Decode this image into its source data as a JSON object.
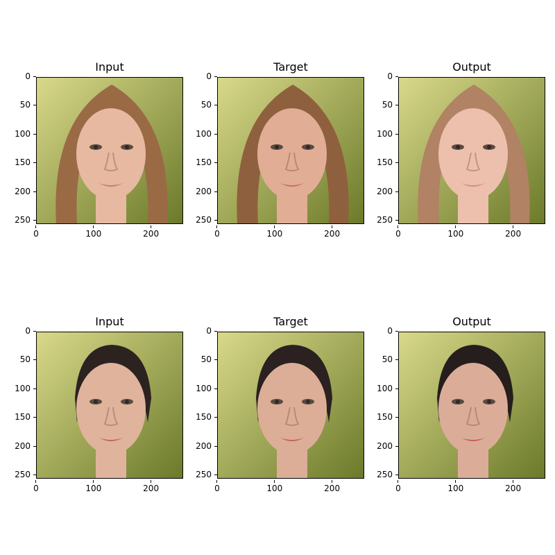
{
  "axes": {
    "yticks": [
      "0",
      "50",
      "100",
      "150",
      "200",
      "250"
    ],
    "xticks": [
      "0",
      "100",
      "200"
    ]
  },
  "rows": [
    {
      "panels": [
        {
          "title": "Input",
          "palette": {
            "bg1": "#d9d98a",
            "bg2": "#6b7a2a",
            "hair": "#9a6a45",
            "skin": "#e7b9a1",
            "lips": "#c97774"
          }
        },
        {
          "title": "Target",
          "palette": {
            "bg1": "#d7d286",
            "bg2": "#5f6d25",
            "hair": "#8f603e",
            "skin": "#e2ad95",
            "lips": "#c56d6a"
          }
        },
        {
          "title": "Output",
          "palette": {
            "bg1": "#d8d2a5",
            "bg2": "#9fa070",
            "hair": "#b18263",
            "skin": "#ecc0ad",
            "lips": "#d38a82"
          }
        }
      ]
    },
    {
      "panels": [
        {
          "title": "Input",
          "palette": {
            "bg1": "#c9c25a",
            "bg2": "#8d8c31",
            "hair": "#2c2220",
            "skin": "#e0b39d",
            "lips": "#c9606a"
          }
        },
        {
          "title": "Target",
          "palette": {
            "bg1": "#c5bd56",
            "bg2": "#8b862f",
            "hair": "#2a2120",
            "skin": "#dcae97",
            "lips": "#c75d66"
          }
        },
        {
          "title": "Output",
          "palette": {
            "bg1": "#a9a247",
            "bg2": "#6f7032",
            "hair": "#261e1d",
            "skin": "#dbad99",
            "lips": "#c95b68"
          }
        }
      ]
    }
  ]
}
